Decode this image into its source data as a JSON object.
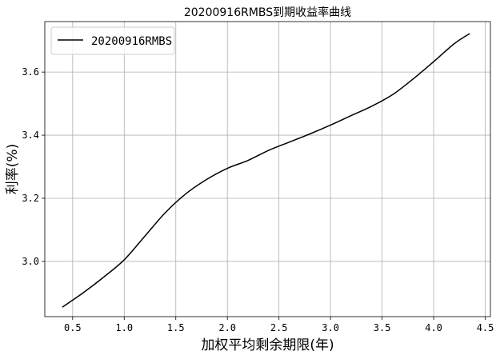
{
  "chart_data": {
    "type": "line",
    "title": "20200916RMBS到期收益率曲线",
    "xlabel": "加权平均剩余期限(年)",
    "ylabel": "利率(%)",
    "xlim": [
      0.23,
      4.55
    ],
    "ylim": [
      2.825,
      3.76
    ],
    "xticks": [
      0.5,
      1.0,
      1.5,
      2.0,
      2.5,
      3.0,
      3.5,
      4.0,
      4.5
    ],
    "xtick_labels": [
      "0.5",
      "1.0",
      "1.5",
      "2.0",
      "2.5",
      "3.0",
      "3.5",
      "4.0",
      "4.5"
    ],
    "yticks": [
      3.0,
      3.2,
      3.4,
      3.6
    ],
    "ytick_labels": [
      "3.0",
      "3.2",
      "3.4",
      "3.6"
    ],
    "grid": true,
    "legend": {
      "placement": "top-left",
      "entries": [
        "20200916RMBS"
      ]
    },
    "series": [
      {
        "name": "20200916RMBS",
        "color": "#000000",
        "x": [
          0.4,
          0.6,
          0.8,
          1.0,
          1.2,
          1.4,
          1.6,
          1.8,
          2.0,
          2.2,
          2.4,
          2.6,
          2.8,
          3.0,
          3.2,
          3.4,
          3.6,
          3.8,
          4.0,
          4.2,
          4.35
        ],
        "y": [
          2.855,
          2.9,
          2.95,
          3.005,
          3.08,
          3.155,
          3.215,
          3.26,
          3.295,
          3.32,
          3.352,
          3.378,
          3.404,
          3.432,
          3.462,
          3.492,
          3.528,
          3.578,
          3.633,
          3.69,
          3.722
        ]
      }
    ]
  }
}
